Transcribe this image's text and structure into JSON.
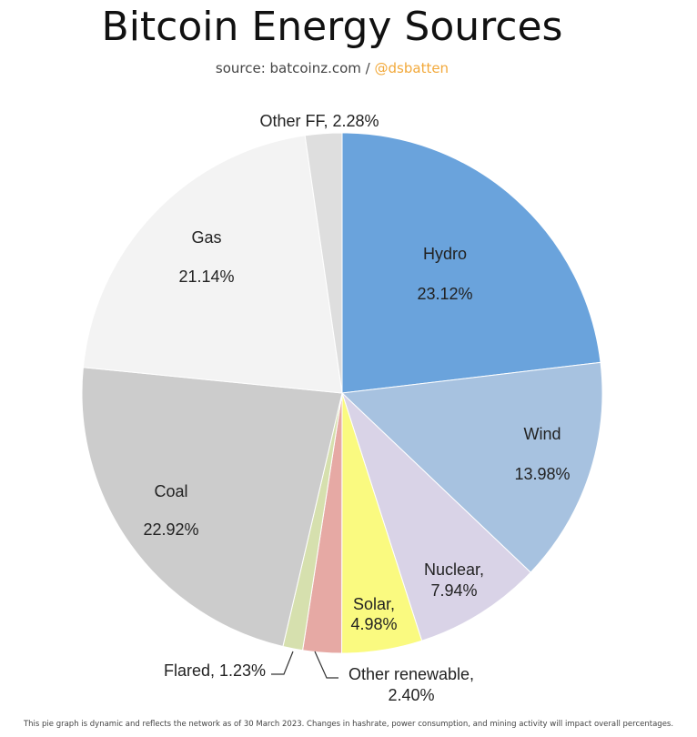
{
  "header": {
    "title": "Bitcoin Energy Sources",
    "source_prefix": "source: batcoinz.com / ",
    "source_handle": "@dsbatten"
  },
  "footnote": "This pie graph is dynamic and reflects the network as of 30 March 2023. Changes in hashrate, power consumption, and mining activity will impact overall percentages.",
  "colors": {
    "handle": "#f2a93b"
  },
  "chart_data": {
    "type": "pie",
    "title": "Bitcoin Energy Sources",
    "start": "12 o'clock",
    "direction": "clockwise",
    "slices": [
      {
        "label": "Hydro",
        "value": 23.12,
        "value_text": "23.12%",
        "color": "#6aa3dc",
        "label_style": "inside-two-line"
      },
      {
        "label": "Wind",
        "value": 13.98,
        "value_text": "13.98%",
        "color": "#a7c2e0",
        "label_style": "inside-two-line"
      },
      {
        "label": "Nuclear,",
        "value": 7.94,
        "value_text": "7.94%",
        "color": "#d9d3e7",
        "label_style": "inside-stacked"
      },
      {
        "label": "Solar,",
        "value": 4.98,
        "value_text": "4.98%",
        "color": "#fafa80",
        "label_style": "inside-stacked"
      },
      {
        "label": "Other renewable,",
        "value": 2.4,
        "value_text": "2.40%",
        "color": "#e6a9a4",
        "label_style": "callout-stacked"
      },
      {
        "label": "Flared,",
        "value": 1.23,
        "value_text": "1.23%",
        "color": "#d6e0ae",
        "label_style": "callout-inline"
      },
      {
        "label": "Coal",
        "value": 22.92,
        "value_text": "22.92%",
        "color": "#cccccc",
        "label_style": "inside-two-line"
      },
      {
        "label": "Gas",
        "value": 21.14,
        "value_text": "21.14%",
        "color": "#f3f3f3",
        "label_style": "inside-two-line"
      },
      {
        "label": "Other FF,",
        "value": 2.28,
        "value_text": "2.28%",
        "color": "#dedede",
        "label_style": "outside-inline"
      }
    ]
  }
}
